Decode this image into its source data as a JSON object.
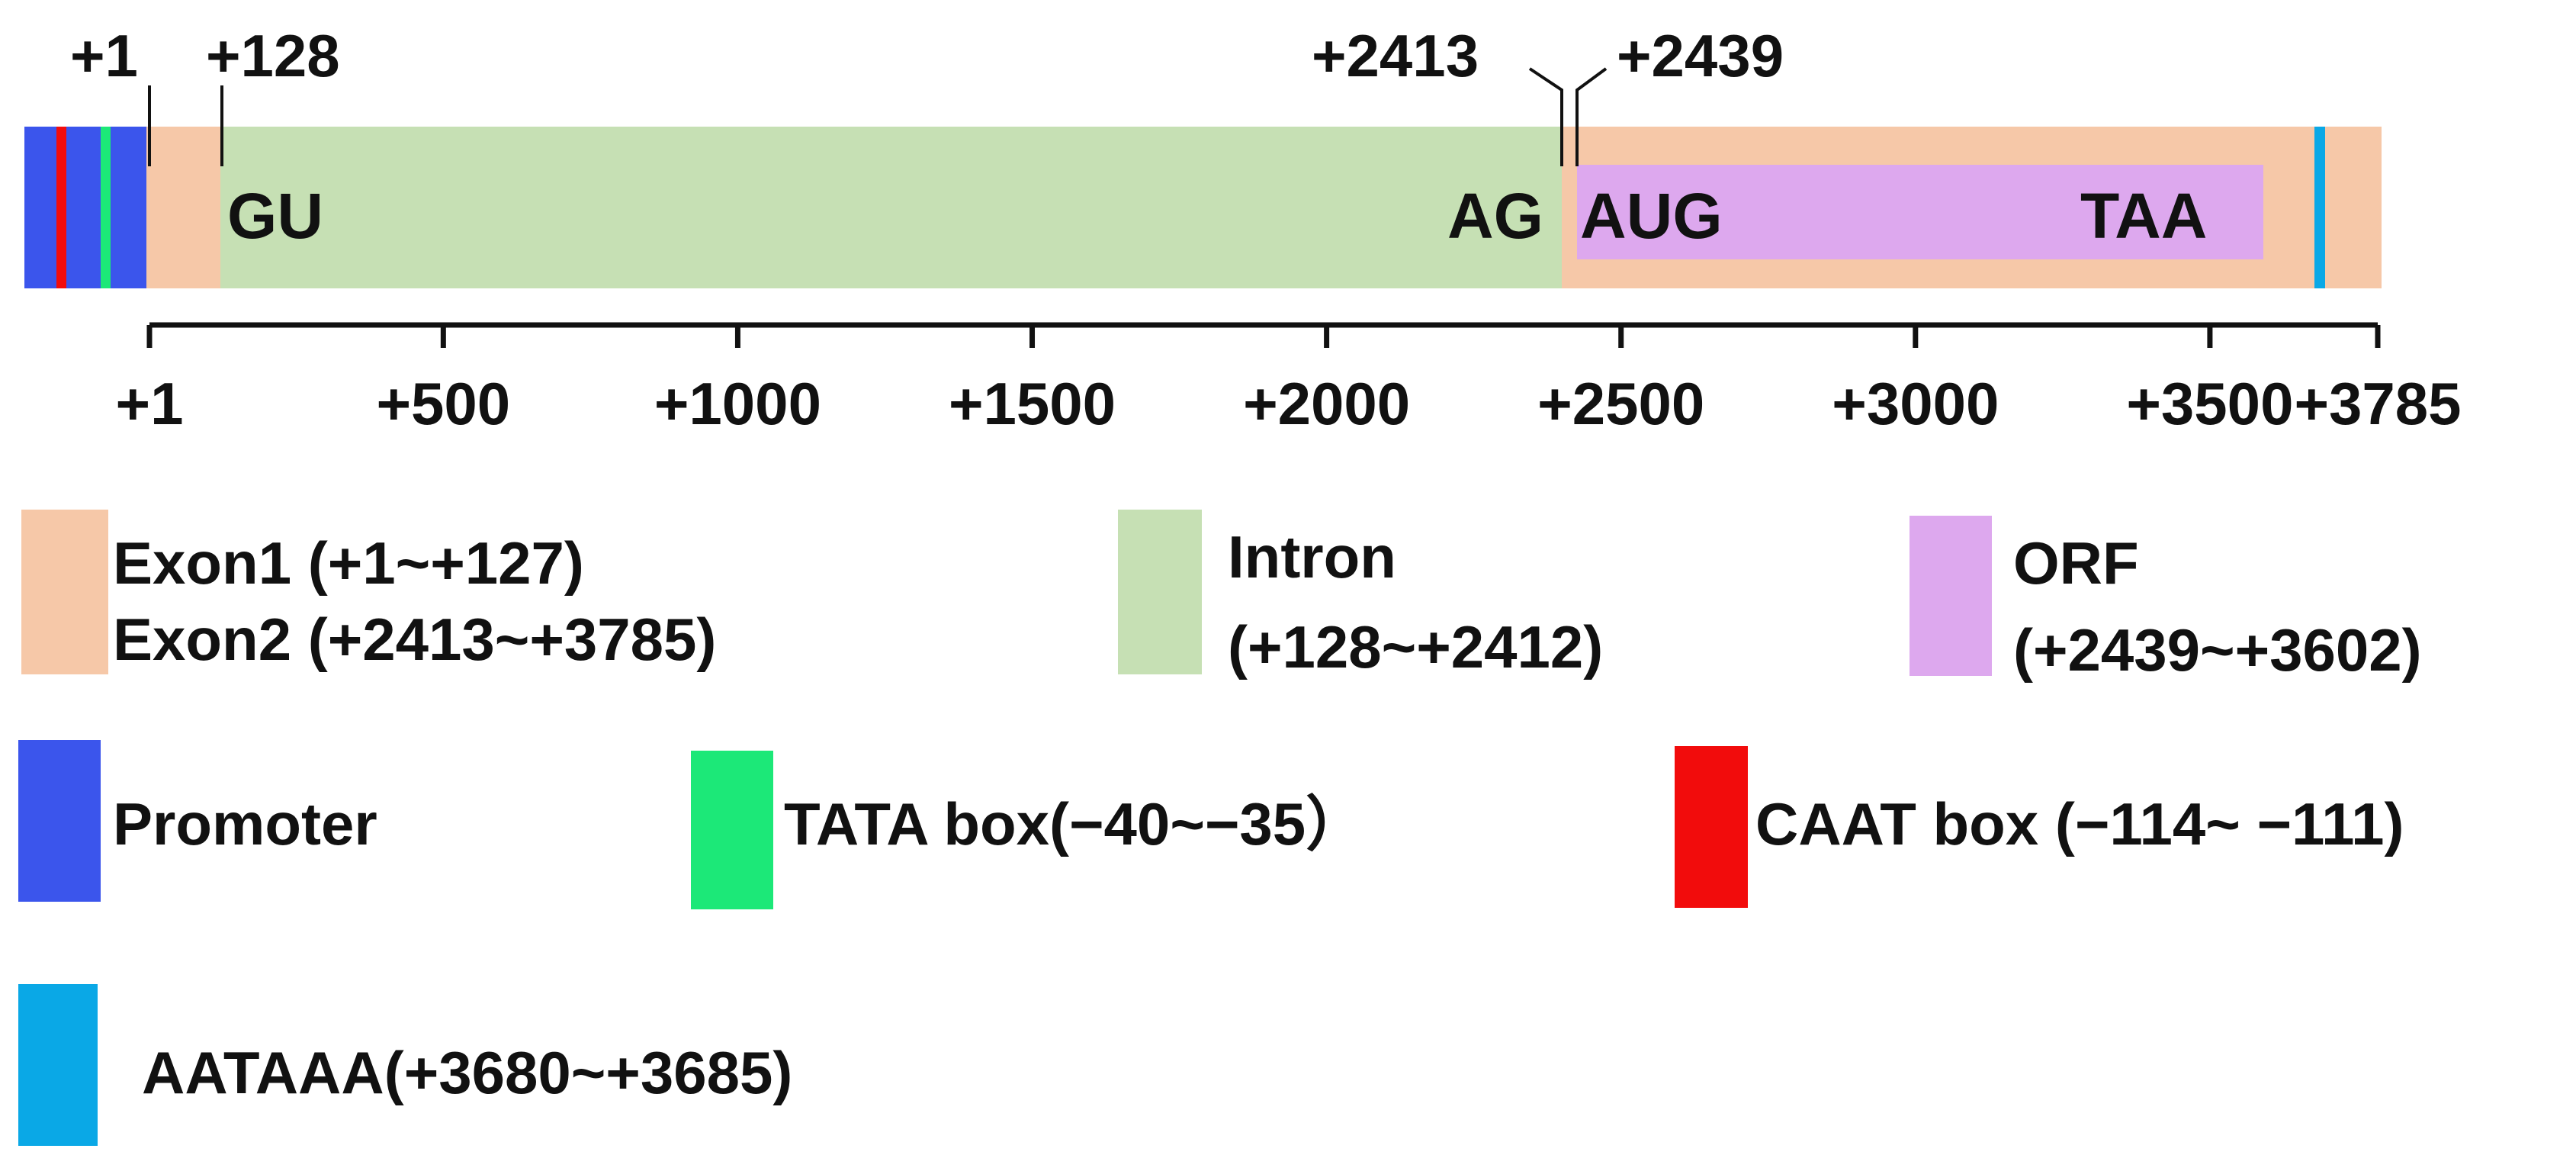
{
  "colors": {
    "exon": "#F6C8A8",
    "intron": "#C6E0B4",
    "orf": "#DDA8EE",
    "promoter": "#3B55EC",
    "tata": "#1CE878",
    "caat": "#F20C0C",
    "aataaa": "#0AA8E6",
    "axis": "#111111"
  },
  "gene": {
    "top_labels": [
      "+1",
      "+128",
      "+2413",
      "+2439"
    ],
    "site_labels": {
      "gu": "GU",
      "ag": "AG",
      "aug": "AUG",
      "taa": "TAA"
    }
  },
  "axis": {
    "ticks": [
      {
        "value": 1,
        "label": "+1"
      },
      {
        "value": 500,
        "label": "+500"
      },
      {
        "value": 1000,
        "label": "+1000"
      },
      {
        "value": 1500,
        "label": "+1500"
      },
      {
        "value": 2000,
        "label": "+2000"
      },
      {
        "value": 2500,
        "label": "+2500"
      },
      {
        "value": 3000,
        "label": "+3000"
      },
      {
        "value": 3500,
        "label": "+3500"
      },
      {
        "value": 3785,
        "label": "+3785"
      }
    ]
  },
  "legend": {
    "exon_line1": "Exon1 (+1~+127)",
    "exon_line2": "Exon2 (+2413~+3785)",
    "intron_line1": "Intron",
    "intron_line2": "(+128~+2412)",
    "orf_line1": "ORF",
    "orf_line2": "(+2439~+3602)",
    "promoter": "Promoter",
    "tata": "TATA box(−40~−35）",
    "caat": "CAAT box (−114~ −111)",
    "aataaa": "AATAAA(+3680~+3685)"
  }
}
